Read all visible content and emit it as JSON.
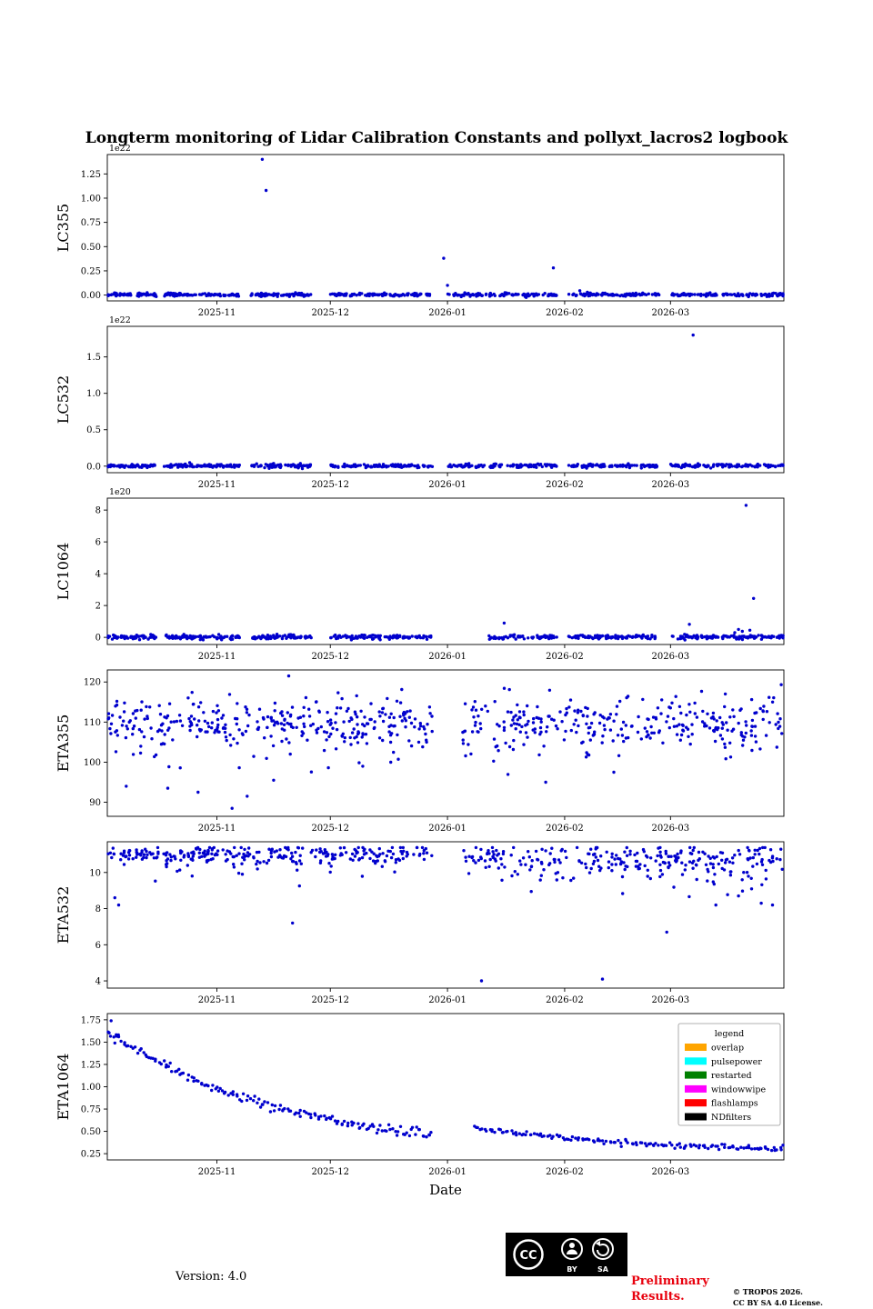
{
  "title": "Longterm monitoring of Lidar Calibration Constants and pollyxt_lacros2 logbook",
  "xlabel": "Date",
  "point_color": "#0000cd",
  "axis": {
    "x_domain": [
      "2025-10-03",
      "2026-03-31"
    ],
    "x_ticks": [
      {
        "date": "2025-11-01",
        "label": "2025-11"
      },
      {
        "date": "2025-12-01",
        "label": "2025-12"
      },
      {
        "date": "2026-01-01",
        "label": "2026-01"
      },
      {
        "date": "2026-02-01",
        "label": "2026-02"
      },
      {
        "date": "2026-03-01",
        "label": "2026-03"
      }
    ]
  },
  "chart_data": [
    {
      "name": "LC355",
      "type": "scatter",
      "ylabel": "LC355",
      "offset_label": "1e22",
      "ylim": [
        -0.06,
        1.45
      ],
      "y_ticks": [
        0,
        0.25,
        0.5,
        0.75,
        1.0,
        1.25
      ],
      "y_tick_labels": [
        "0.00",
        "0.25",
        "0.50",
        "0.75",
        "1.00",
        "1.25"
      ],
      "clusters": [
        {
          "x_start": "2025-10-03",
          "x_end": "2025-10-16",
          "count": 60,
          "y_center": 0.004,
          "y_spread": 0.008
        },
        {
          "x_start": "2025-10-18",
          "x_end": "2025-11-07",
          "count": 95,
          "y_center": 0.004,
          "y_spread": 0.008
        },
        {
          "x_start": "2025-11-10",
          "x_end": "2025-11-26",
          "count": 80,
          "y_center": 0.004,
          "y_spread": 0.008
        },
        {
          "x_start": "2025-12-01",
          "x_end": "2025-12-28",
          "count": 105,
          "y_center": 0.004,
          "y_spread": 0.008
        },
        {
          "x_start": "2026-01-01",
          "x_end": "2026-01-30",
          "count": 105,
          "y_center": 0.004,
          "y_spread": 0.008
        },
        {
          "x_start": "2026-02-02",
          "x_end": "2026-02-26",
          "count": 95,
          "y_center": 0.004,
          "y_spread": 0.008
        },
        {
          "x_start": "2026-03-01",
          "x_end": "2026-03-31",
          "count": 115,
          "y_center": 0.004,
          "y_spread": 0.008
        }
      ],
      "outliers": [
        [
          "2025-11-13",
          1.4
        ],
        [
          "2025-11-14",
          1.08
        ],
        [
          "2025-12-31",
          0.38
        ],
        [
          "2026-01-01",
          0.1
        ],
        [
          "2026-01-29",
          0.28
        ],
        [
          "2026-02-05",
          0.045
        ],
        [
          "2026-02-07",
          0.03
        ]
      ]
    },
    {
      "name": "LC532",
      "type": "scatter",
      "ylabel": "LC532",
      "offset_label": "1e22",
      "ylim": [
        -0.09,
        1.92
      ],
      "y_ticks": [
        0,
        0.5,
        1.0,
        1.5
      ],
      "y_tick_labels": [
        "0.0",
        "0.5",
        "1.0",
        "1.5"
      ],
      "clusters": [
        {
          "x_start": "2025-10-03",
          "x_end": "2025-10-16",
          "count": 60,
          "y_center": 0.005,
          "y_spread": 0.012
        },
        {
          "x_start": "2025-10-18",
          "x_end": "2025-11-07",
          "count": 95,
          "y_center": 0.005,
          "y_spread": 0.012
        },
        {
          "x_start": "2025-11-10",
          "x_end": "2025-11-26",
          "count": 80,
          "y_center": 0.005,
          "y_spread": 0.012
        },
        {
          "x_start": "2025-12-01",
          "x_end": "2025-12-28",
          "count": 105,
          "y_center": 0.005,
          "y_spread": 0.012
        },
        {
          "x_start": "2026-01-01",
          "x_end": "2026-01-30",
          "count": 105,
          "y_center": 0.005,
          "y_spread": 0.012
        },
        {
          "x_start": "2026-02-02",
          "x_end": "2026-02-26",
          "count": 95,
          "y_center": 0.005,
          "y_spread": 0.012
        },
        {
          "x_start": "2026-03-01",
          "x_end": "2026-03-31",
          "count": 115,
          "y_center": 0.005,
          "y_spread": 0.012
        }
      ],
      "outliers": [
        [
          "2026-03-07",
          1.8
        ]
      ]
    },
    {
      "name": "LC1064",
      "type": "scatter",
      "ylabel": "LC1064",
      "offset_label": "1e20",
      "ylim": [
        -0.45,
        8.75
      ],
      "y_ticks": [
        0,
        2,
        4,
        6,
        8
      ],
      "y_tick_labels": [
        "0",
        "2",
        "4",
        "6",
        "8"
      ],
      "clusters": [
        {
          "x_start": "2025-10-03",
          "x_end": "2025-10-16",
          "count": 60,
          "y_center": 0.02,
          "y_spread": 0.07
        },
        {
          "x_start": "2025-10-18",
          "x_end": "2025-11-07",
          "count": 95,
          "y_center": 0.02,
          "y_spread": 0.07
        },
        {
          "x_start": "2025-11-10",
          "x_end": "2025-11-26",
          "count": 80,
          "y_center": 0.02,
          "y_spread": 0.07
        },
        {
          "x_start": "2025-12-01",
          "x_end": "2025-12-28",
          "count": 105,
          "y_center": 0.02,
          "y_spread": 0.07
        },
        {
          "x_start": "2026-01-12",
          "x_end": "2026-01-30",
          "count": 70,
          "y_center": 0.02,
          "y_spread": 0.07
        },
        {
          "x_start": "2026-02-02",
          "x_end": "2026-02-26",
          "count": 95,
          "y_center": 0.02,
          "y_spread": 0.07
        },
        {
          "x_start": "2026-03-01",
          "x_end": "2026-03-31",
          "count": 125,
          "y_center": 0.02,
          "y_spread": 0.07
        }
      ],
      "outliers": [
        [
          "2026-03-21",
          8.3
        ],
        [
          "2026-03-23",
          2.45
        ],
        [
          "2026-01-16",
          0.9
        ],
        [
          "2026-03-06",
          0.82
        ],
        [
          "2026-03-19",
          0.5
        ],
        [
          "2026-03-20",
          0.38
        ],
        [
          "2026-03-18",
          0.3
        ],
        [
          "2026-03-22",
          0.45
        ]
      ]
    },
    {
      "name": "ETA355",
      "type": "scatter",
      "ylabel": "ETA355",
      "offset_label": "",
      "ylim": [
        86.5,
        123
      ],
      "y_ticks": [
        90,
        100,
        110,
        120
      ],
      "y_tick_labels": [
        "90",
        "100",
        "110",
        "120"
      ],
      "clusters": [
        {
          "x_start": "2025-10-03",
          "x_end": "2025-12-28",
          "count": 330,
          "y_center": 109.9,
          "y_spread": 3.2
        },
        {
          "x_start": "2026-01-05",
          "x_end": "2026-03-31",
          "count": 300,
          "y_center": 109.4,
          "y_spread": 3.3
        },
        {
          "x_start": "2025-10-03",
          "x_end": "2026-03-31",
          "count": 16,
          "y_center": 99.5,
          "y_spread": 2.2
        }
      ],
      "outliers": [
        [
          "2025-11-20",
          121.5
        ],
        [
          "2025-10-08",
          94
        ],
        [
          "2025-10-19",
          93.5
        ],
        [
          "2025-10-27",
          92.5
        ],
        [
          "2025-11-05",
          88.5
        ],
        [
          "2025-11-09",
          91.5
        ],
        [
          "2025-11-16",
          95.5
        ],
        [
          "2025-12-17",
          100
        ],
        [
          "2026-01-27",
          95
        ],
        [
          "2026-02-14",
          97.5
        ]
      ]
    },
    {
      "name": "ETA532",
      "type": "scatter",
      "ylabel": "ETA532",
      "offset_label": "",
      "ylim": [
        3.6,
        11.7
      ],
      "y_ticks": [
        4,
        6,
        8,
        10
      ],
      "y_tick_labels": [
        "4",
        "6",
        "8",
        "10"
      ],
      "clusters": [
        {
          "x_start": "2025-10-03",
          "x_end": "2025-12-28",
          "count": 260,
          "y_center": 11.0,
          "y_spread": 0.22,
          "y_max": 11.38
        },
        {
          "x_start": "2026-01-05",
          "x_end": "2026-03-31",
          "count": 230,
          "y_center": 10.8,
          "y_spread": 0.4,
          "y_max": 11.38
        },
        {
          "x_start": "2026-01-15",
          "x_end": "2026-03-31",
          "count": 55,
          "y_center": 10.0,
          "y_spread": 0.5
        },
        {
          "x_start": "2025-10-03",
          "x_end": "2025-12-28",
          "count": 30,
          "y_center": 10.4,
          "y_spread": 0.4
        }
      ],
      "outliers": [
        [
          "2025-10-05",
          8.6
        ],
        [
          "2025-10-06",
          8.2
        ],
        [
          "2025-11-21",
          7.2
        ],
        [
          "2026-01-10",
          4.0
        ],
        [
          "2026-02-11",
          4.1
        ],
        [
          "2026-02-28",
          6.7
        ],
        [
          "2026-03-13",
          8.2
        ],
        [
          "2026-03-25",
          8.3
        ],
        [
          "2026-03-19",
          8.7
        ],
        [
          "2026-03-28",
          8.2
        ]
      ]
    },
    {
      "name": "ETA1064",
      "type": "scatter",
      "ylabel": "ETA1064",
      "offset_label": "",
      "ylim": [
        0.18,
        1.82
      ],
      "y_ticks": [
        0.25,
        0.5,
        0.75,
        1.0,
        1.25,
        1.5,
        1.75
      ],
      "y_tick_labels": [
        "0.25",
        "0.50",
        "0.75",
        "1.00",
        "1.25",
        "1.50",
        "1.75"
      ],
      "trends": [
        {
          "x_start": "2025-10-03",
          "x_end": "2025-12-28",
          "a": 1.37,
          "tau": 46,
          "c": 0.25,
          "noise": 0.025,
          "count": 165
        },
        {
          "x_start": "2026-01-08",
          "x_end": "2026-03-31",
          "a": 2.47,
          "tau": 46,
          "c": 0.25,
          "noise": 0.016,
          "count": 145
        }
      ],
      "outliers": [
        [
          "2025-10-04",
          1.74
        ],
        [
          "2025-10-06",
          1.56
        ],
        [
          "2025-10-05",
          1.49
        ]
      ],
      "legend": {
        "title": "legend",
        "entries": [
          {
            "label": "overlap",
            "color": "#ffa500"
          },
          {
            "label": "pulsepower",
            "color": "#00ffff"
          },
          {
            "label": "restarted",
            "color": "#008000"
          },
          {
            "label": "windowwipe",
            "color": "#ff00ff"
          },
          {
            "label": "flashlamps",
            "color": "#ff0000"
          },
          {
            "label": "NDfilters",
            "color": "#000000"
          }
        ]
      }
    }
  ],
  "footer": {
    "version": "Version: 4.0",
    "preliminary_line1": "Preliminary",
    "preliminary_line2": "Results.",
    "preliminary_color": "#e8000d",
    "copyright_line1": "© TROPOS 2026.",
    "copyright_line2": "CC BY SA 4.0 License.",
    "cc_badge": {
      "cc": "CC",
      "by": "BY",
      "sa": "SA"
    }
  }
}
